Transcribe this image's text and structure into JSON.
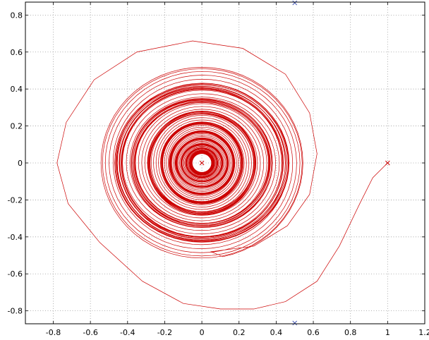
{
  "chart_data": {
    "type": "line",
    "title": "",
    "xlabel": "",
    "ylabel": "",
    "xlim": [
      -0.95,
      1.2
    ],
    "ylim": [
      -0.87,
      0.87
    ],
    "grid": true,
    "x_ticks": [
      -0.8,
      -0.6,
      -0.4,
      -0.2,
      0,
      0.2,
      0.4,
      0.6,
      0.8,
      1,
      1.2
    ],
    "x_tick_labels": [
      "-0.8",
      "-0.6",
      "-0.4",
      "-0.2",
      "0",
      "0.2",
      "0.4",
      "0.6",
      "0.8",
      "1",
      "1.2"
    ],
    "y_ticks": [
      -0.8,
      -0.6,
      -0.4,
      -0.2,
      0,
      0.2,
      0.4,
      0.6,
      0.8
    ],
    "y_tick_labels": [
      "-0.8",
      "-0.6",
      "-0.4",
      "-0.2",
      "0",
      "0.2",
      "0.4",
      "0.6",
      "0.8"
    ],
    "series": [
      {
        "color": "#cc0000",
        "style": "inward-spiral",
        "start": [
          1.0,
          0.0
        ],
        "path": [
          [
            1.0,
            0.0
          ],
          [
            0.97,
            -0.03
          ],
          [
            0.92,
            -0.08
          ],
          [
            0.85,
            -0.22
          ],
          [
            0.74,
            -0.45
          ],
          [
            0.62,
            -0.64
          ],
          [
            0.45,
            -0.75
          ],
          [
            0.28,
            -0.79
          ],
          [
            0.1,
            -0.79
          ],
          [
            -0.1,
            -0.76
          ],
          [
            -0.32,
            -0.64
          ],
          [
            -0.55,
            -0.43
          ],
          [
            -0.72,
            -0.22
          ],
          [
            -0.78,
            0.0
          ],
          [
            -0.73,
            0.22
          ],
          [
            -0.58,
            0.45
          ],
          [
            -0.35,
            0.6
          ],
          [
            -0.05,
            0.66
          ],
          [
            0.22,
            0.62
          ],
          [
            0.45,
            0.48
          ],
          [
            0.58,
            0.27
          ],
          [
            0.62,
            0.05
          ],
          [
            0.58,
            -0.17
          ],
          [
            0.46,
            -0.34
          ],
          [
            0.28,
            -0.45
          ],
          [
            0.05,
            -0.48
          ]
        ],
        "spiral_center": [
          0.0,
          0.0
        ],
        "inner_hole_radius": 0.055,
        "dense_core_radius": 0.22
      }
    ],
    "markers": [
      {
        "symbol": "x",
        "x": 1.0,
        "y": 0.0,
        "color": "#cc0000"
      },
      {
        "symbol": "x",
        "x": 0.0,
        "y": 0.0,
        "color": "#cc0000"
      },
      {
        "symbol": "x",
        "x": 0.5,
        "y": 0.866,
        "color": "#3a4fb0"
      },
      {
        "symbol": "x",
        "x": 0.5,
        "y": -0.866,
        "color": "#3a4fb0"
      }
    ]
  }
}
